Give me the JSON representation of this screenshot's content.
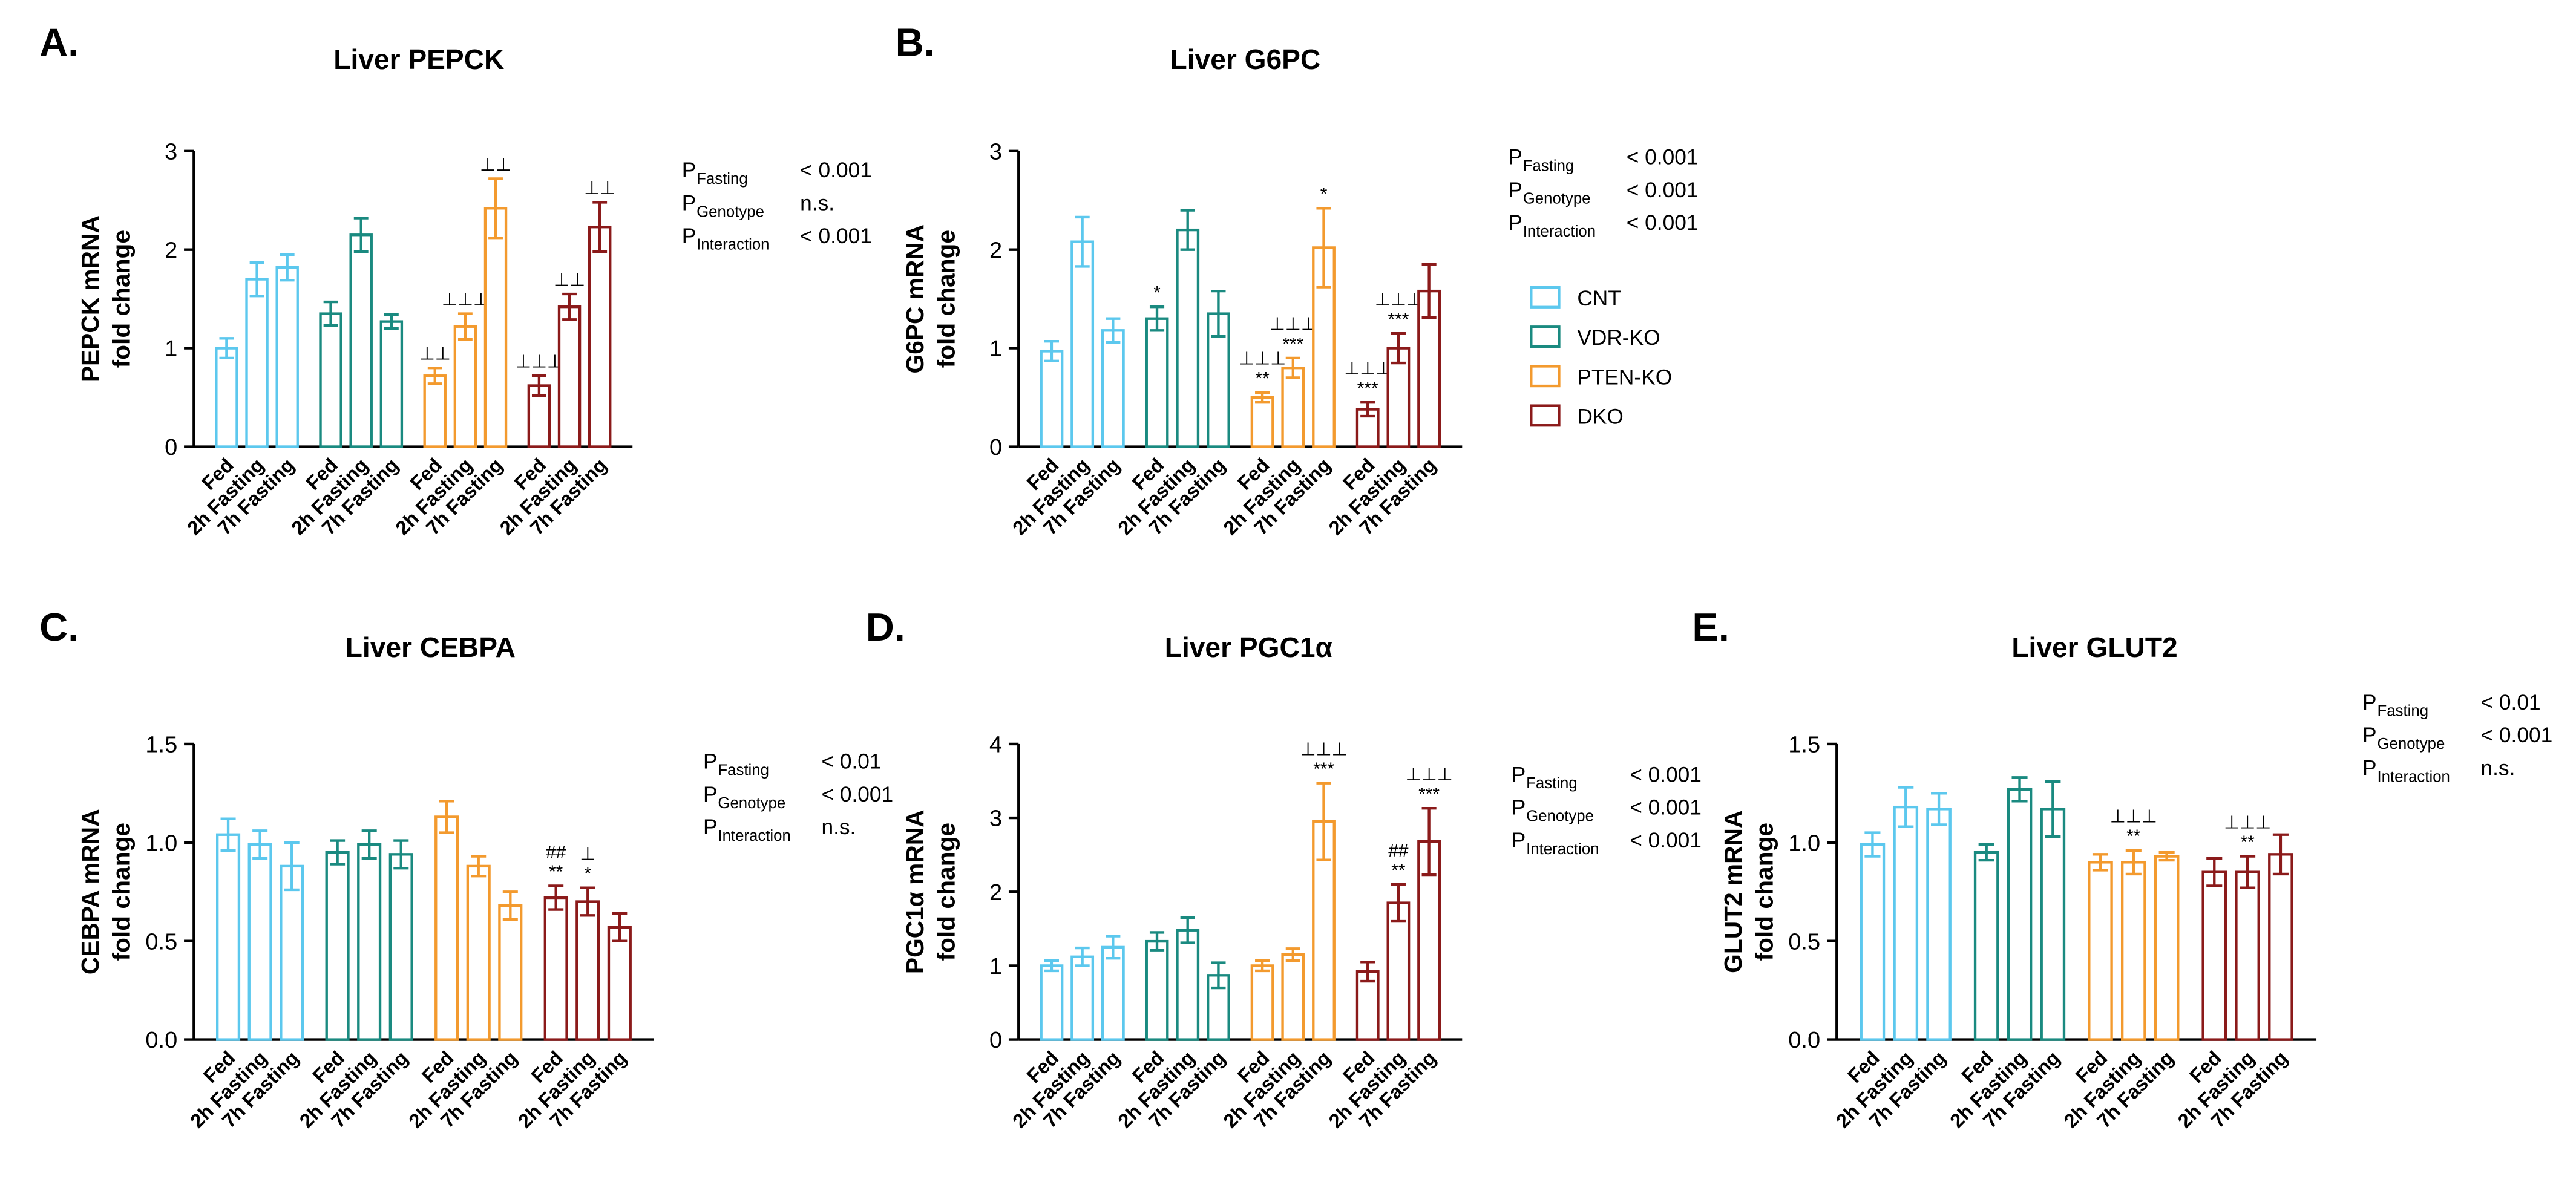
{
  "chart_data": [
    {
      "type": "bar",
      "panel": "A.",
      "title": "Liver PEPCK",
      "ylabel": [
        "PEPCK mRNA",
        "fold change"
      ],
      "categories": [
        "Fed",
        "2h Fasting",
        "7h Fasting"
      ],
      "series": [
        {
          "color": "#5cc8ee",
          "values": [
            1.0,
            1.7,
            1.82
          ],
          "errors": [
            0.1,
            0.17,
            0.13
          ],
          "annotations": [
            null,
            null,
            null
          ]
        },
        {
          "color": "#1a8a80",
          "values": [
            1.35,
            2.15,
            1.27
          ],
          "errors": [
            0.12,
            0.17,
            0.07
          ],
          "annotations": [
            null,
            null,
            null
          ]
        },
        {
          "color": "#f39a2e",
          "values": [
            0.72,
            1.22,
            2.42
          ],
          "errors": [
            0.08,
            0.13,
            0.3
          ],
          "annotations": [
            [
              "⊥⊥"
            ],
            [
              "⊥⊥⊥"
            ],
            [
              "⊥⊥"
            ]
          ]
        },
        {
          "color": "#8b1a1a",
          "values": [
            0.62,
            1.42,
            2.23
          ],
          "errors": [
            0.1,
            0.13,
            0.25
          ],
          "annotations": [
            [
              "⊥⊥⊥"
            ],
            [
              "⊥⊥"
            ],
            [
              "⊥⊥"
            ]
          ]
        }
      ],
      "ylim": [
        0,
        3
      ],
      "yticks": [
        0,
        1,
        2,
        3
      ],
      "stat_symbol": "P",
      "stats": [
        {
          "name": "Fasting",
          "value": "< 0.001"
        },
        {
          "name": "Genotype",
          "value": "n.s."
        },
        {
          "name": "Interaction",
          "value": "< 0.001"
        }
      ]
    },
    {
      "type": "bar",
      "panel": "B.",
      "title": "Liver G6PC",
      "ylabel": [
        "G6PC mRNA",
        "fold change"
      ],
      "categories": [
        "Fed",
        "2h Fasting",
        "7h Fasting"
      ],
      "series": [
        {
          "name": "CNT",
          "color": "#5cc8ee",
          "values": [
            0.97,
            2.08,
            1.18
          ],
          "errors": [
            0.1,
            0.25,
            0.12
          ],
          "annotations": [
            null,
            null,
            null
          ]
        },
        {
          "name": "VDR-KO",
          "color": "#1a8a80",
          "values": [
            1.3,
            2.2,
            1.35
          ],
          "errors": [
            0.12,
            0.2,
            0.23
          ],
          "annotations": [
            [
              "*"
            ],
            null,
            null
          ]
        },
        {
          "name": "PTEN-KO",
          "color": "#f39a2e",
          "values": [
            0.5,
            0.8,
            2.02
          ],
          "errors": [
            0.05,
            0.1,
            0.4
          ],
          "annotations": [
            [
              "⊥⊥⊥",
              "**"
            ],
            [
              "⊥⊥⊥",
              "***"
            ],
            [
              "*"
            ]
          ]
        },
        {
          "name": "DKO",
          "color": "#8b1a1a",
          "values": [
            0.38,
            1.0,
            1.58
          ],
          "errors": [
            0.07,
            0.15,
            0.27
          ],
          "annotations": [
            [
              "⊥⊥⊥",
              "***"
            ],
            [
              "⊥⊥⊥",
              "***"
            ],
            null
          ]
        }
      ],
      "ylim": [
        0,
        3
      ],
      "yticks": [
        0,
        1,
        2,
        3
      ],
      "legend": "right",
      "stat_symbol": "P",
      "stats": [
        {
          "name": "Fasting",
          "value": "< 0.001"
        },
        {
          "name": "Genotype",
          "value": "< 0.001"
        },
        {
          "name": "Interaction",
          "value": "< 0.001"
        }
      ]
    },
    {
      "type": "bar",
      "panel": "C.",
      "title": "Liver CEBPA",
      "ylabel": [
        "CEBPA mRNA",
        "fold change"
      ],
      "categories": [
        "Fed",
        "2h Fasting",
        "7h Fasting"
      ],
      "series": [
        {
          "color": "#5cc8ee",
          "values": [
            1.04,
            0.99,
            0.88
          ],
          "errors": [
            0.08,
            0.07,
            0.12
          ],
          "annotations": [
            null,
            null,
            null
          ]
        },
        {
          "color": "#1a8a80",
          "values": [
            0.95,
            0.99,
            0.94
          ],
          "errors": [
            0.06,
            0.07,
            0.07
          ],
          "annotations": [
            null,
            null,
            null
          ]
        },
        {
          "color": "#f39a2e",
          "values": [
            1.13,
            0.88,
            0.68
          ],
          "errors": [
            0.08,
            0.05,
            0.07
          ],
          "annotations": [
            null,
            null,
            null
          ]
        },
        {
          "color": "#8b1a1a",
          "values": [
            0.72,
            0.7,
            0.57
          ],
          "errors": [
            0.06,
            0.07,
            0.07
          ],
          "annotations": [
            [
              "##",
              "**"
            ],
            [
              "⊥",
              "*"
            ],
            null
          ]
        }
      ],
      "ylim": [
        0,
        1.5
      ],
      "yticks": [
        {
          "value": 0,
          "label": "0.0"
        },
        0.5,
        {
          "value": 1,
          "label": "1.0"
        },
        1.5
      ],
      "stat_symbol": "P",
      "stats": [
        {
          "name": "Fasting",
          "value": "< 0.01"
        },
        {
          "name": "Genotype",
          "value": "< 0.001"
        },
        {
          "name": "Interaction",
          "value": "n.s."
        }
      ]
    },
    {
      "type": "bar",
      "panel": "D.",
      "title": "Liver PGC1α",
      "ylabel": [
        "PGC1α mRNA",
        "fold change"
      ],
      "categories": [
        "Fed",
        "2h Fasting",
        "7h Fasting"
      ],
      "series": [
        {
          "color": "#5cc8ee",
          "values": [
            1.0,
            1.12,
            1.25
          ],
          "errors": [
            0.07,
            0.12,
            0.15
          ],
          "annotations": [
            null,
            null,
            null
          ]
        },
        {
          "color": "#1a8a80",
          "values": [
            1.33,
            1.48,
            0.87
          ],
          "errors": [
            0.12,
            0.17,
            0.17
          ],
          "annotations": [
            null,
            null,
            null
          ]
        },
        {
          "color": "#f39a2e",
          "values": [
            1.0,
            1.15,
            2.95
          ],
          "errors": [
            0.07,
            0.08,
            0.52
          ],
          "annotations": [
            null,
            null,
            [
              "⊥⊥⊥",
              "***"
            ]
          ]
        },
        {
          "color": "#8b1a1a",
          "values": [
            0.92,
            1.85,
            2.68
          ],
          "errors": [
            0.13,
            0.25,
            0.45
          ],
          "annotations": [
            null,
            [
              "##",
              "**"
            ],
            [
              "⊥⊥⊥",
              "***"
            ]
          ]
        }
      ],
      "ylim": [
        0,
        4
      ],
      "yticks": [
        0,
        1,
        2,
        3,
        4
      ],
      "stat_symbol": "P",
      "stats": [
        {
          "name": "Fasting",
          "value": "< 0.001"
        },
        {
          "name": "Genotype",
          "value": "< 0.001"
        },
        {
          "name": "Interaction",
          "value": "< 0.001"
        }
      ]
    },
    {
      "type": "bar",
      "panel": "E.",
      "title": "Liver GLUT2",
      "ylabel": [
        "GLUT2 mRNA",
        "fold change"
      ],
      "categories": [
        "Fed",
        "2h Fasting",
        "7h Fasting"
      ],
      "series": [
        {
          "color": "#5cc8ee",
          "values": [
            0.99,
            1.18,
            1.17
          ],
          "errors": [
            0.06,
            0.1,
            0.08
          ],
          "annotations": [
            null,
            null,
            null
          ]
        },
        {
          "color": "#1a8a80",
          "values": [
            0.95,
            1.27,
            1.17
          ],
          "errors": [
            0.04,
            0.06,
            0.14
          ],
          "annotations": [
            null,
            null,
            null
          ]
        },
        {
          "color": "#f39a2e",
          "values": [
            0.9,
            0.9,
            0.93
          ],
          "errors": [
            0.04,
            0.06,
            0.02
          ],
          "annotations": [
            null,
            [
              "⊥⊥⊥",
              "**"
            ],
            null
          ]
        },
        {
          "color": "#8b1a1a",
          "values": [
            0.85,
            0.85,
            0.94
          ],
          "errors": [
            0.07,
            0.08,
            0.1
          ],
          "annotations": [
            null,
            [
              "⊥⊥⊥",
              "**"
            ],
            null
          ]
        }
      ],
      "ylim": [
        0,
        1.5
      ],
      "yticks": [
        {
          "value": 0,
          "label": "0.0"
        },
        0.5,
        {
          "value": 1,
          "label": "1.0"
        },
        1.5
      ],
      "stat_symbol": "P",
      "stats": [
        {
          "name": "Fasting",
          "value": "< 0.01"
        },
        {
          "name": "Genotype",
          "value": "< 0.001"
        },
        {
          "name": "Interaction",
          "value": "n.s."
        }
      ]
    }
  ]
}
